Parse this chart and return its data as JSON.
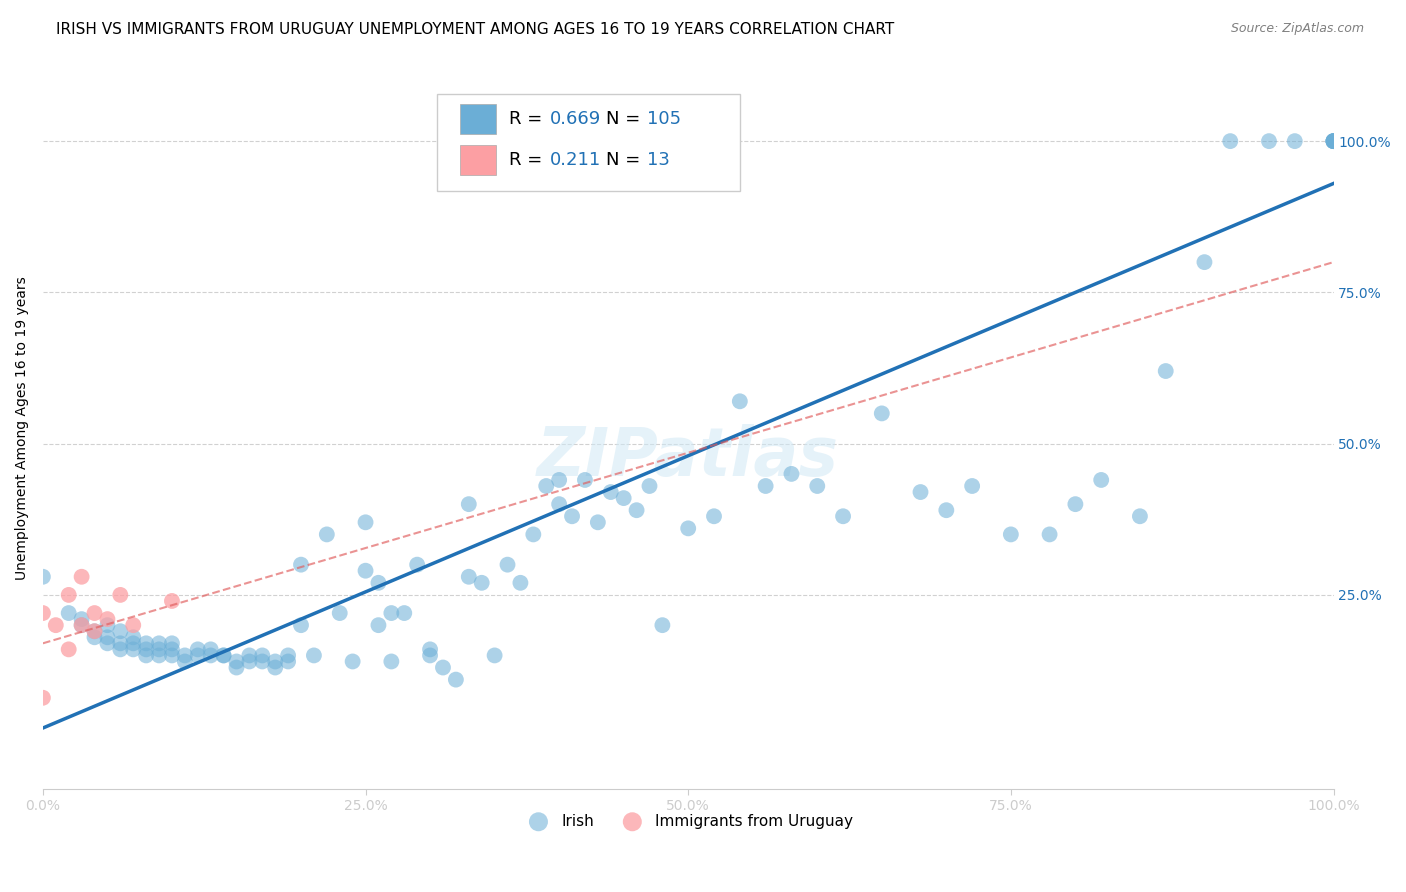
{
  "title": "IRISH VS IMMIGRANTS FROM URUGUAY UNEMPLOYMENT AMONG AGES 16 TO 19 YEARS CORRELATION CHART",
  "source": "Source: ZipAtlas.com",
  "ylabel": "Unemployment Among Ages 16 to 19 years",
  "xlim": [
    0.0,
    1.0
  ],
  "ylim": [
    -0.07,
    1.12
  ],
  "irish_R": 0.669,
  "irish_N": 105,
  "uruguay_R": 0.211,
  "uruguay_N": 13,
  "irish_color": "#6baed6",
  "uruguay_color": "#fc9fa3",
  "irish_line_color": "#2171b5",
  "uruguay_line_color": "#e05a5a",
  "background_color": "#ffffff",
  "grid_color": "#cccccc",
  "title_fontsize": 11,
  "axis_label_fontsize": 10,
  "tick_fontsize": 10,
  "legend_fontsize": 13,
  "irish_scatter_x": [
    0.0,
    0.02,
    0.03,
    0.03,
    0.04,
    0.04,
    0.05,
    0.05,
    0.05,
    0.06,
    0.06,
    0.06,
    0.07,
    0.07,
    0.07,
    0.08,
    0.08,
    0.08,
    0.09,
    0.09,
    0.09,
    0.1,
    0.1,
    0.1,
    0.11,
    0.11,
    0.12,
    0.12,
    0.13,
    0.13,
    0.14,
    0.14,
    0.15,
    0.15,
    0.16,
    0.16,
    0.17,
    0.17,
    0.18,
    0.18,
    0.19,
    0.19,
    0.2,
    0.2,
    0.21,
    0.22,
    0.23,
    0.24,
    0.25,
    0.25,
    0.26,
    0.26,
    0.27,
    0.27,
    0.28,
    0.29,
    0.3,
    0.3,
    0.31,
    0.32,
    0.33,
    0.33,
    0.34,
    0.35,
    0.36,
    0.37,
    0.38,
    0.39,
    0.4,
    0.4,
    0.41,
    0.42,
    0.43,
    0.44,
    0.45,
    0.46,
    0.47,
    0.48,
    0.5,
    0.52,
    0.54,
    0.56,
    0.58,
    0.6,
    0.62,
    0.65,
    0.68,
    0.7,
    0.72,
    0.75,
    0.78,
    0.8,
    0.82,
    0.85,
    0.87,
    0.9,
    0.92,
    0.95,
    0.97,
    1.0,
    1.0,
    1.0,
    1.0,
    1.0,
    1.0
  ],
  "irish_scatter_y": [
    0.28,
    0.22,
    0.2,
    0.21,
    0.18,
    0.19,
    0.17,
    0.18,
    0.2,
    0.16,
    0.17,
    0.19,
    0.16,
    0.17,
    0.18,
    0.15,
    0.16,
    0.17,
    0.15,
    0.16,
    0.17,
    0.15,
    0.16,
    0.17,
    0.14,
    0.15,
    0.15,
    0.16,
    0.15,
    0.16,
    0.15,
    0.15,
    0.13,
    0.14,
    0.14,
    0.15,
    0.14,
    0.15,
    0.13,
    0.14,
    0.14,
    0.15,
    0.2,
    0.3,
    0.15,
    0.35,
    0.22,
    0.14,
    0.29,
    0.37,
    0.2,
    0.27,
    0.14,
    0.22,
    0.22,
    0.3,
    0.15,
    0.16,
    0.13,
    0.11,
    0.28,
    0.4,
    0.27,
    0.15,
    0.3,
    0.27,
    0.35,
    0.43,
    0.4,
    0.44,
    0.38,
    0.44,
    0.37,
    0.42,
    0.41,
    0.39,
    0.43,
    0.2,
    0.36,
    0.38,
    0.57,
    0.43,
    0.45,
    0.43,
    0.38,
    0.55,
    0.42,
    0.39,
    0.43,
    0.35,
    0.35,
    0.4,
    0.44,
    0.38,
    0.62,
    0.8,
    1.0,
    1.0,
    1.0,
    1.0,
    1.0,
    1.0,
    1.0,
    1.0,
    1.0
  ],
  "uruguay_scatter_x": [
    0.0,
    0.0,
    0.01,
    0.02,
    0.02,
    0.03,
    0.03,
    0.04,
    0.04,
    0.05,
    0.06,
    0.07,
    0.1
  ],
  "uruguay_scatter_y": [
    0.22,
    0.08,
    0.2,
    0.25,
    0.16,
    0.28,
    0.2,
    0.22,
    0.19,
    0.21,
    0.25,
    0.2,
    0.24
  ],
  "irish_line_x": [
    0.0,
    1.0
  ],
  "irish_line_y": [
    0.03,
    0.93
  ],
  "uruguay_line_x": [
    0.0,
    1.0
  ],
  "uruguay_line_y": [
    0.17,
    0.8
  ]
}
